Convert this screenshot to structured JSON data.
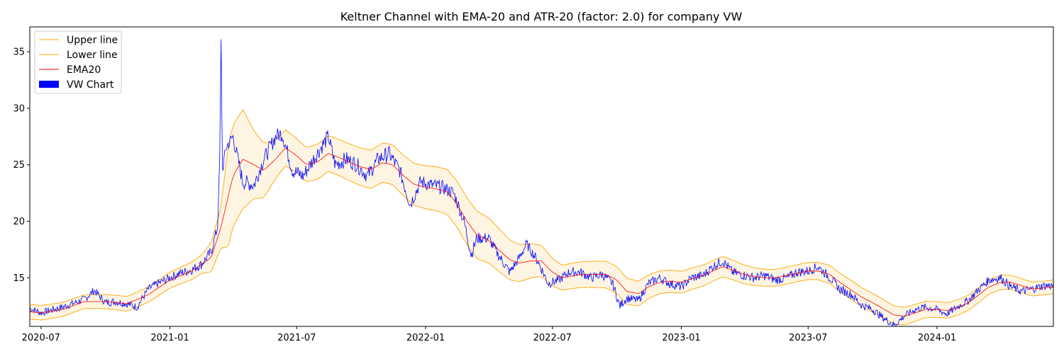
{
  "chart_data": {
    "type": "line",
    "title": "Keltner Channel with EMA-20 and ATR-20 (factor: 2.0) for company VW",
    "xlabel": "",
    "ylabel": "",
    "x_range": [
      "2020-06-15",
      "2024-06-15"
    ],
    "ylim": [
      10.7,
      37.2
    ],
    "x_tick_labels": [
      "2020-07",
      "2021-01",
      "2021-07",
      "2022-01",
      "2022-07",
      "2023-01",
      "2023-07",
      "2024-01"
    ],
    "x_tick_dates": [
      "2020-07-01",
      "2021-01-01",
      "2021-07-01",
      "2022-01-01",
      "2022-07-01",
      "2023-01-01",
      "2023-07-01",
      "2024-01-01"
    ],
    "y_ticks": [
      15,
      20,
      25,
      30,
      35
    ],
    "legend_position": "upper left",
    "channel_fill_color": "#fdf5e1",
    "series": [
      {
        "name": "Upper line",
        "color": "#ffa500",
        "role": "upper"
      },
      {
        "name": "Lower line",
        "color": "#ffa500",
        "role": "lower"
      },
      {
        "name": "EMA20",
        "color": "#ff0000",
        "role": "ema"
      },
      {
        "name": "VW Chart",
        "color": "#0000ff",
        "role": "price"
      }
    ],
    "price": {
      "dates": [
        "2020-06-15",
        "2020-07-01",
        "2020-08-01",
        "2020-09-01",
        "2020-09-15",
        "2020-10-01",
        "2020-10-15",
        "2020-11-01",
        "2020-11-15",
        "2020-12-01",
        "2020-12-15",
        "2021-01-01",
        "2021-01-15",
        "2021-02-01",
        "2021-02-15",
        "2021-03-01",
        "2021-03-10",
        "2021-03-13",
        "2021-03-15",
        "2021-03-17",
        "2021-03-22",
        "2021-04-01",
        "2021-04-15",
        "2021-05-01",
        "2021-05-15",
        "2021-06-01",
        "2021-06-10",
        "2021-06-25",
        "2021-07-10",
        "2021-07-25",
        "2021-08-15",
        "2021-08-25",
        "2021-09-10",
        "2021-09-25",
        "2021-10-10",
        "2021-10-25",
        "2021-11-10",
        "2021-11-25",
        "2021-12-10",
        "2021-12-25",
        "2022-01-10",
        "2022-01-25",
        "2022-02-10",
        "2022-02-25",
        "2022-03-07",
        "2022-03-15",
        "2022-04-01",
        "2022-04-15",
        "2022-05-01",
        "2022-05-15",
        "2022-05-25",
        "2022-06-10",
        "2022-06-25",
        "2022-07-10",
        "2022-07-25",
        "2022-08-10",
        "2022-08-25",
        "2022-09-10",
        "2022-09-25",
        "2022-10-05",
        "2022-10-15",
        "2022-11-01",
        "2022-11-15",
        "2022-12-01",
        "2022-12-15",
        "2023-01-01",
        "2023-01-15",
        "2023-02-01",
        "2023-02-15",
        "2023-03-01",
        "2023-03-15",
        "2023-04-01",
        "2023-04-15",
        "2023-05-01",
        "2023-05-15",
        "2023-06-01",
        "2023-06-15",
        "2023-07-01",
        "2023-07-15",
        "2023-08-01",
        "2023-08-15",
        "2023-09-01",
        "2023-09-15",
        "2023-10-01",
        "2023-10-15",
        "2023-11-01",
        "2023-11-15",
        "2023-12-01",
        "2023-12-15",
        "2024-01-01",
        "2024-01-15",
        "2024-02-01",
        "2024-02-15",
        "2024-03-01",
        "2024-03-15",
        "2024-04-01",
        "2024-04-15",
        "2024-05-01",
        "2024-05-15",
        "2024-06-01",
        "2024-06-15"
      ],
      "values": [
        12.3,
        11.9,
        12.4,
        13.1,
        13.9,
        12.8,
        12.9,
        12.7,
        12.4,
        14.0,
        14.5,
        15.0,
        15.4,
        15.7,
        16.2,
        17.3,
        19.5,
        25.0,
        36.2,
        24.5,
        26.5,
        27.5,
        23.5,
        23.2,
        25.5,
        27.5,
        27.8,
        24.5,
        24.0,
        25.5,
        27.5,
        25.0,
        25.5,
        25.0,
        24.0,
        25.5,
        26.0,
        24.5,
        21.5,
        23.5,
        23.2,
        23.0,
        22.5,
        20.0,
        17.0,
        18.5,
        18.5,
        17.0,
        15.5,
        16.8,
        18.0,
        16.5,
        14.5,
        14.8,
        15.5,
        15.5,
        15.0,
        15.3,
        14.5,
        12.5,
        13.2,
        13.0,
        14.5,
        15.0,
        14.5,
        14.2,
        15.0,
        15.2,
        16.0,
        16.5,
        15.5,
        15.2,
        15.0,
        15.2,
        14.8,
        15.0,
        15.5,
        15.6,
        16.0,
        15.0,
        14.0,
        13.5,
        12.6,
        12.2,
        11.5,
        10.8,
        11.6,
        12.2,
        12.4,
        12.2,
        11.8,
        12.5,
        13.0,
        14.0,
        14.8,
        15.0,
        14.2,
        13.8,
        14.0,
        14.3,
        14.3
      ]
    },
    "ema": {
      "dates": [
        "2020-06-15",
        "2020-07-01",
        "2020-08-01",
        "2020-09-01",
        "2020-10-01",
        "2020-11-01",
        "2020-12-01",
        "2021-01-01",
        "2021-02-01",
        "2021-03-01",
        "2021-03-15",
        "2021-04-01",
        "2021-04-15",
        "2021-05-01",
        "2021-05-15",
        "2021-06-01",
        "2021-06-15",
        "2021-07-01",
        "2021-07-15",
        "2021-08-01",
        "2021-08-15",
        "2021-09-01",
        "2021-09-15",
        "2021-10-01",
        "2021-10-15",
        "2021-11-01",
        "2021-11-15",
        "2021-12-01",
        "2021-12-15",
        "2022-01-01",
        "2022-01-15",
        "2022-02-01",
        "2022-02-15",
        "2022-03-01",
        "2022-03-15",
        "2022-04-01",
        "2022-04-15",
        "2022-05-01",
        "2022-05-15",
        "2022-06-01",
        "2022-06-15",
        "2022-07-01",
        "2022-07-15",
        "2022-08-01",
        "2022-08-15",
        "2022-09-01",
        "2022-09-15",
        "2022-10-01",
        "2022-10-15",
        "2022-11-01",
        "2022-11-15",
        "2022-12-01",
        "2022-12-15",
        "2023-01-01",
        "2023-01-15",
        "2023-02-01",
        "2023-02-15",
        "2023-03-01",
        "2023-03-15",
        "2023-04-01",
        "2023-04-15",
        "2023-05-01",
        "2023-05-15",
        "2023-06-01",
        "2023-06-15",
        "2023-07-01",
        "2023-07-15",
        "2023-08-01",
        "2023-08-15",
        "2023-09-01",
        "2023-09-15",
        "2023-10-01",
        "2023-10-15",
        "2023-11-01",
        "2023-11-15",
        "2023-12-01",
        "2023-12-15",
        "2024-01-01",
        "2024-01-15",
        "2024-02-01",
        "2024-02-15",
        "2024-03-01",
        "2024-03-15",
        "2024-04-01",
        "2024-04-15",
        "2024-05-01",
        "2024-05-15",
        "2024-06-01",
        "2024-06-15"
      ],
      "values": [
        12.0,
        11.9,
        12.2,
        12.9,
        12.9,
        12.7,
        13.5,
        14.8,
        15.6,
        16.8,
        19.5,
        24.0,
        25.5,
        25.0,
        24.5,
        25.5,
        26.5,
        25.8,
        25.0,
        25.3,
        26.0,
        25.6,
        25.2,
        24.8,
        24.6,
        25.2,
        25.0,
        24.0,
        23.3,
        23.0,
        22.9,
        22.6,
        21.5,
        20.0,
        18.8,
        18.3,
        17.5,
        16.6,
        16.3,
        16.5,
        16.5,
        15.5,
        15.0,
        15.2,
        15.3,
        15.3,
        15.3,
        14.8,
        13.8,
        13.6,
        14.2,
        14.6,
        14.7,
        14.6,
        14.9,
        15.2,
        15.6,
        16.0,
        15.7,
        15.3,
        15.1,
        15.0,
        15.0,
        15.2,
        15.4,
        15.6,
        15.6,
        15.3,
        14.6,
        13.9,
        13.3,
        12.8,
        12.3,
        11.7,
        11.6,
        11.9,
        12.2,
        12.2,
        12.1,
        12.4,
        12.8,
        13.5,
        14.2,
        14.6,
        14.6,
        14.3,
        14.0,
        14.1,
        14.2
      ]
    },
    "atr_factor": 2.0,
    "channel_half_width": {
      "dates": [
        "2020-06-15",
        "2020-09-01",
        "2021-01-01",
        "2021-02-15",
        "2021-03-15",
        "2021-03-25",
        "2021-04-15",
        "2021-05-01",
        "2021-06-01",
        "2021-07-01",
        "2021-09-01",
        "2021-12-01",
        "2022-02-01",
        "2022-03-15",
        "2022-04-15",
        "2022-06-01",
        "2022-07-15",
        "2022-10-01",
        "2022-12-01",
        "2023-03-01",
        "2023-05-01",
        "2023-07-01",
        "2023-09-01",
        "2023-11-01",
        "2024-01-01",
        "2024-03-01",
        "2024-06-15"
      ],
      "values": [
        0.65,
        0.6,
        0.7,
        0.8,
        1.8,
        4.5,
        4.4,
        3.0,
        1.7,
        1.5,
        1.6,
        1.8,
        2.0,
        2.1,
        1.9,
        1.5,
        1.1,
        1.2,
        1.0,
        0.9,
        0.75,
        0.75,
        0.85,
        0.8,
        0.7,
        0.65,
        0.6
      ]
    }
  }
}
